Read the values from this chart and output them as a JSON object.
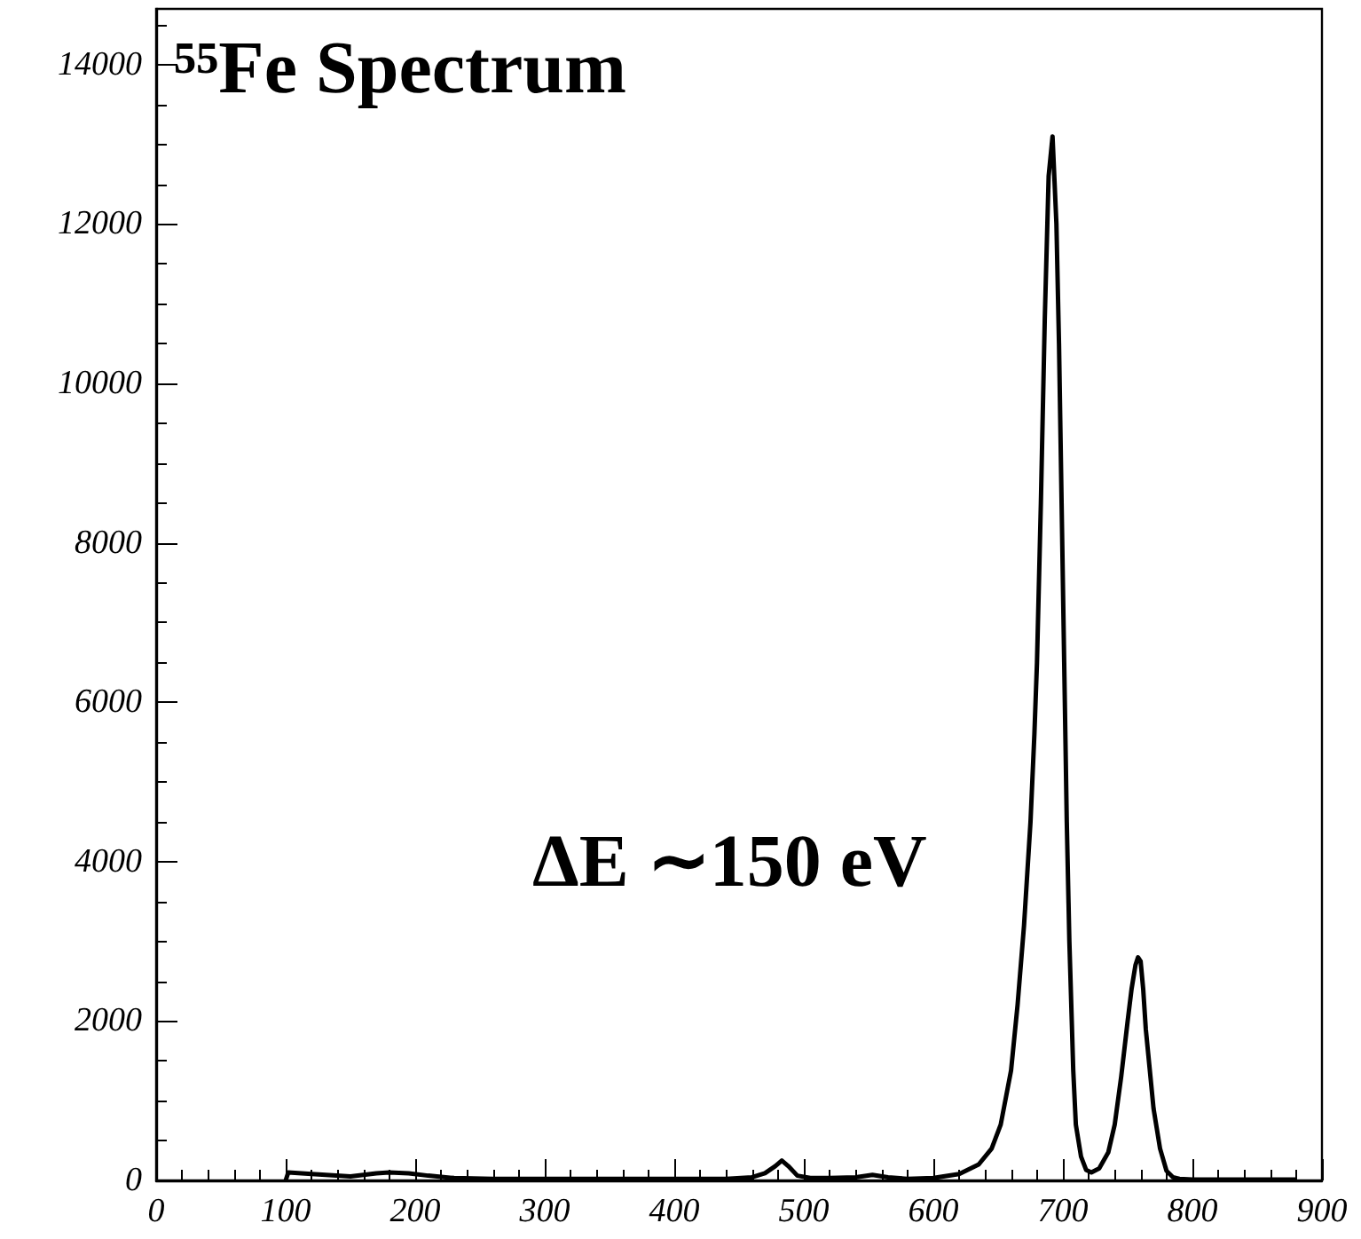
{
  "chart_data": {
    "type": "line",
    "title": "⁵⁵Fe Spectrum",
    "annotations": [
      "ΔE ∼150 eV"
    ],
    "x": [
      100,
      102,
      120,
      150,
      170,
      180,
      195,
      210,
      230,
      260,
      300,
      350,
      400,
      440,
      460,
      470,
      478,
      483,
      488,
      495,
      505,
      520,
      540,
      553,
      565,
      580,
      600,
      620,
      635,
      645,
      652,
      660,
      665,
      670,
      675,
      678,
      680,
      683,
      686,
      689,
      692,
      695,
      697,
      699,
      701,
      703,
      705,
      708,
      710,
      714,
      718,
      722,
      728,
      735,
      740,
      745,
      750,
      753,
      756,
      758,
      760,
      762,
      764,
      767,
      770,
      775,
      780,
      785,
      790,
      800,
      820,
      850,
      880
    ],
    "series": [
      {
        "color": "#000000",
        "line_style": "solid",
        "values": [
          0,
          100,
          80,
          50,
          90,
          100,
          90,
          60,
          30,
          20,
          20,
          20,
          20,
          20,
          40,
          90,
          180,
          250,
          180,
          60,
          30,
          30,
          40,
          70,
          40,
          20,
          30,
          80,
          200,
          400,
          700,
          1380,
          2200,
          3200,
          4500,
          5600,
          6500,
          8500,
          10800,
          12600,
          13100,
          12000,
          10500,
          8500,
          6500,
          4500,
          3000,
          1380,
          700,
          300,
          130,
          100,
          150,
          350,
          700,
          1300,
          2000,
          2400,
          2700,
          2800,
          2750,
          2400,
          1900,
          1400,
          900,
          400,
          120,
          40,
          20,
          10,
          10,
          10,
          10
        ]
      }
    ],
    "xlim": [
      0,
      900
    ],
    "xticks": [
      0,
      100,
      200,
      300,
      400,
      500,
      600,
      700,
      800,
      900
    ],
    "ylim": [
      0,
      14700
    ],
    "yticks": [
      0,
      2000,
      4000,
      6000,
      8000,
      10000,
      12000,
      14000
    ],
    "marker": "none"
  }
}
